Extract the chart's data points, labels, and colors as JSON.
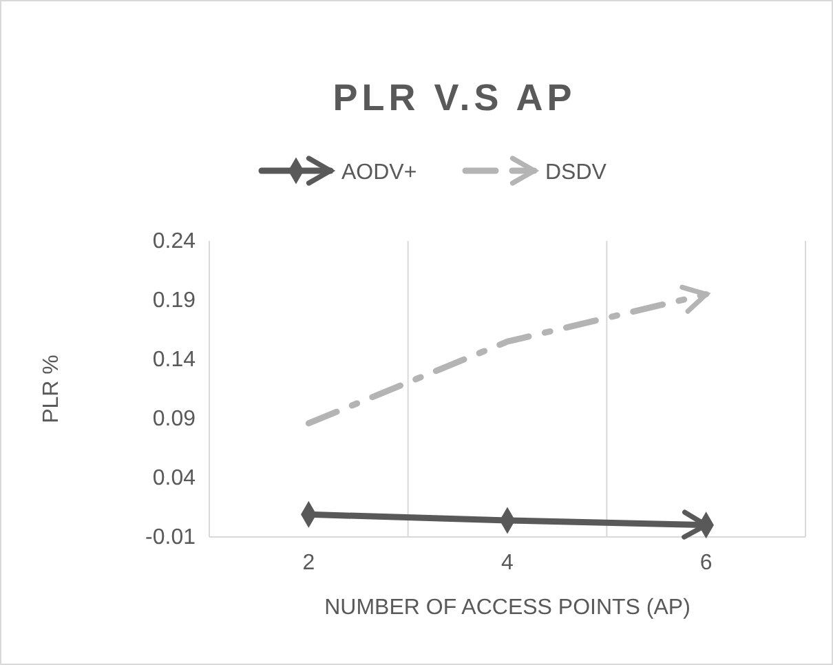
{
  "chart_data": {
    "type": "line",
    "title": "PLR V.S AP",
    "xlabel": "NUMBER OF ACCESS POINTS (AP)",
    "ylabel": "PLR %",
    "categories": [
      "2",
      "4",
      "6"
    ],
    "series": [
      {
        "name": "AODV+",
        "color": "#595959",
        "values": [
          0.009,
          0.004,
          0.0
        ],
        "marker": "diamond",
        "line_style": "solid"
      },
      {
        "name": "DSDV",
        "color": "#b4b4b4",
        "values": [
          0.086,
          0.155,
          0.195
        ],
        "marker": "none",
        "line_style": "dashed"
      }
    ],
    "ylim": [
      -0.01,
      0.24
    ],
    "yticks": [
      -0.01,
      0.04,
      0.09,
      0.14,
      0.19,
      0.24
    ],
    "grid": "x",
    "legend": "top"
  }
}
